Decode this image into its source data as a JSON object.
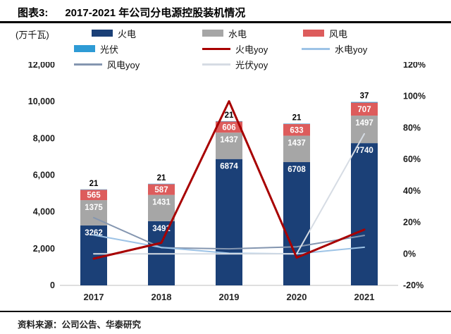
{
  "header": {
    "label": "图表3:",
    "title": "2017-2021 年公司分电源控股装机情况"
  },
  "footer": {
    "source": "资料来源：公司公告、华泰研究"
  },
  "chart_data": {
    "type": "bar",
    "subtype": "stacked-bar-with-lines",
    "unit_label": "(万千瓦)",
    "categories": [
      "2017",
      "2018",
      "2019",
      "2020",
      "2021"
    ],
    "bar_series": [
      {
        "name": "火电",
        "color": "#1B4077",
        "values": [
          3262,
          3491,
          6874,
          6708,
          7740
        ]
      },
      {
        "name": "水电",
        "color": "#A6A6A6",
        "values": [
          1375,
          1431,
          1437,
          1437,
          1497
        ]
      },
      {
        "name": "风电",
        "color": "#DD5C5C",
        "values": [
          565,
          587,
          606,
          633,
          707
        ]
      },
      {
        "name": "光伏",
        "color": "#2E9BD5",
        "values": [
          21,
          21,
          21,
          21,
          37
        ]
      }
    ],
    "line_series": [
      {
        "name": "风电yoy",
        "color": "#8496B0",
        "width": 2,
        "values": [
          23.0,
          3.9,
          3.2,
          4.5,
          11.7
        ]
      },
      {
        "name": "水电yoy",
        "color": "#9DC3E6",
        "width": 2,
        "values": [
          12.0,
          4.1,
          0.4,
          0.0,
          4.2
        ]
      },
      {
        "name": "光伏yoy",
        "color": "#D6DCE4",
        "width": 2,
        "values": [
          0.0,
          0.0,
          0.0,
          0.0,
          76.2
        ]
      },
      {
        "name": "火电yoy",
        "color": "#A80000",
        "width": 3,
        "values": [
          -3.0,
          7.0,
          96.9,
          -2.4,
          15.4
        ]
      }
    ],
    "legend_rows": [
      [
        "火电",
        "水电",
        "风电"
      ],
      [
        "光伏",
        "火电yoy",
        "水电yoy"
      ],
      [
        "风电yoy",
        "光伏yoy"
      ]
    ],
    "left_axis": {
      "min": 0,
      "max": 12000,
      "step": 2000,
      "ticks": [
        "0",
        "2,000",
        "4,000",
        "6,000",
        "8,000",
        "10,000",
        "12,000"
      ]
    },
    "right_axis": {
      "min": -20,
      "max": 120,
      "step": 20,
      "ticks": [
        "-20%",
        "0%",
        "20%",
        "40%",
        "60%",
        "80%",
        "100%",
        "120%"
      ]
    },
    "grid": "off",
    "legend_position": "top"
  }
}
